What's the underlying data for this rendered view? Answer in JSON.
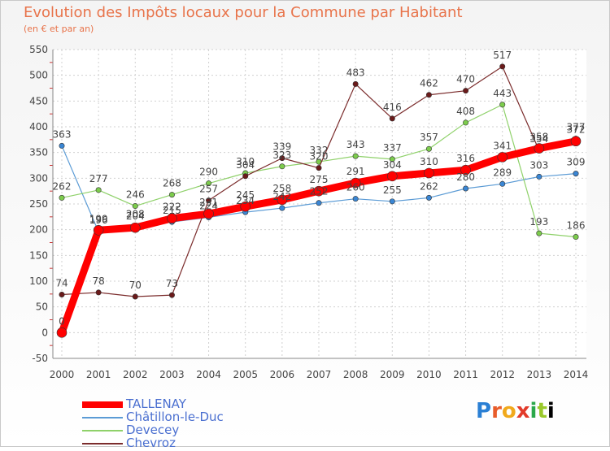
{
  "title": "Evolution des Impôts locaux pour la Commune par Habitant",
  "subtitle": "(en € et par an)",
  "logo_text": "Proxiti",
  "chart_data": {
    "type": "line",
    "x": [
      "2000",
      "2001",
      "2002",
      "2003",
      "2004",
      "2005",
      "2006",
      "2007",
      "2008",
      "2009",
      "2010",
      "2011",
      "2012",
      "2013",
      "2014"
    ],
    "ylim": [
      -50,
      550
    ],
    "yticks": [
      "-50",
      "0",
      "50",
      "100",
      "150",
      "200",
      "250",
      "300",
      "350",
      "400",
      "450",
      "500",
      "550"
    ],
    "grid": true,
    "legend": "bottom-left",
    "series": [
      {
        "name": "TALLENAY",
        "color": "#ff0000",
        "marker": "#ff0000",
        "width": 9,
        "values": [
          0,
          199,
          204,
          222,
          231,
          245,
          258,
          275,
          291,
          304,
          310,
          316,
          341,
          358,
          372
        ],
        "labels": [
          "0",
          "199",
          "204",
          "222",
          "231",
          "245",
          "258",
          "275",
          "291",
          "304",
          "310",
          "316",
          "341",
          "358",
          "372"
        ]
      },
      {
        "name": "Châtillon-le-Duc",
        "color": "#5b9bd5",
        "marker": "#3a86d4",
        "width": 1.2,
        "values": [
          363,
          196,
          208,
          215,
          224,
          234,
          242,
          252,
          260,
          255,
          262,
          280,
          289,
          303,
          309
        ],
        "labels": [
          "363",
          "196",
          "208",
          "215",
          "224",
          "234",
          "242",
          "252",
          "260",
          "255",
          "262",
          "280",
          "289",
          "303",
          "309"
        ]
      },
      {
        "name": "Devecey",
        "color": "#8fd16a",
        "marker": "#7ccc4c",
        "width": 1.2,
        "values": [
          262,
          277,
          246,
          268,
          290,
          310,
          323,
          332,
          343,
          337,
          357,
          408,
          443,
          193,
          186
        ],
        "labels": [
          "262",
          "277",
          "246",
          "268",
          "290",
          "310",
          "323",
          "332",
          "343",
          "337",
          "357",
          "408",
          "443",
          "193",
          "186"
        ]
      },
      {
        "name": "Chevroz",
        "color": "#7b2c2c",
        "marker": "#6b1a1a",
        "width": 1.2,
        "values": [
          74,
          78,
          70,
          73,
          257,
          304,
          339,
          320,
          483,
          416,
          462,
          470,
          517,
          354,
          377
        ],
        "labels": [
          "74",
          "78",
          "70",
          "73",
          "257",
          "304",
          "339",
          "320",
          "483",
          "416",
          "462",
          "470",
          "517",
          "354",
          "377"
        ]
      }
    ]
  }
}
